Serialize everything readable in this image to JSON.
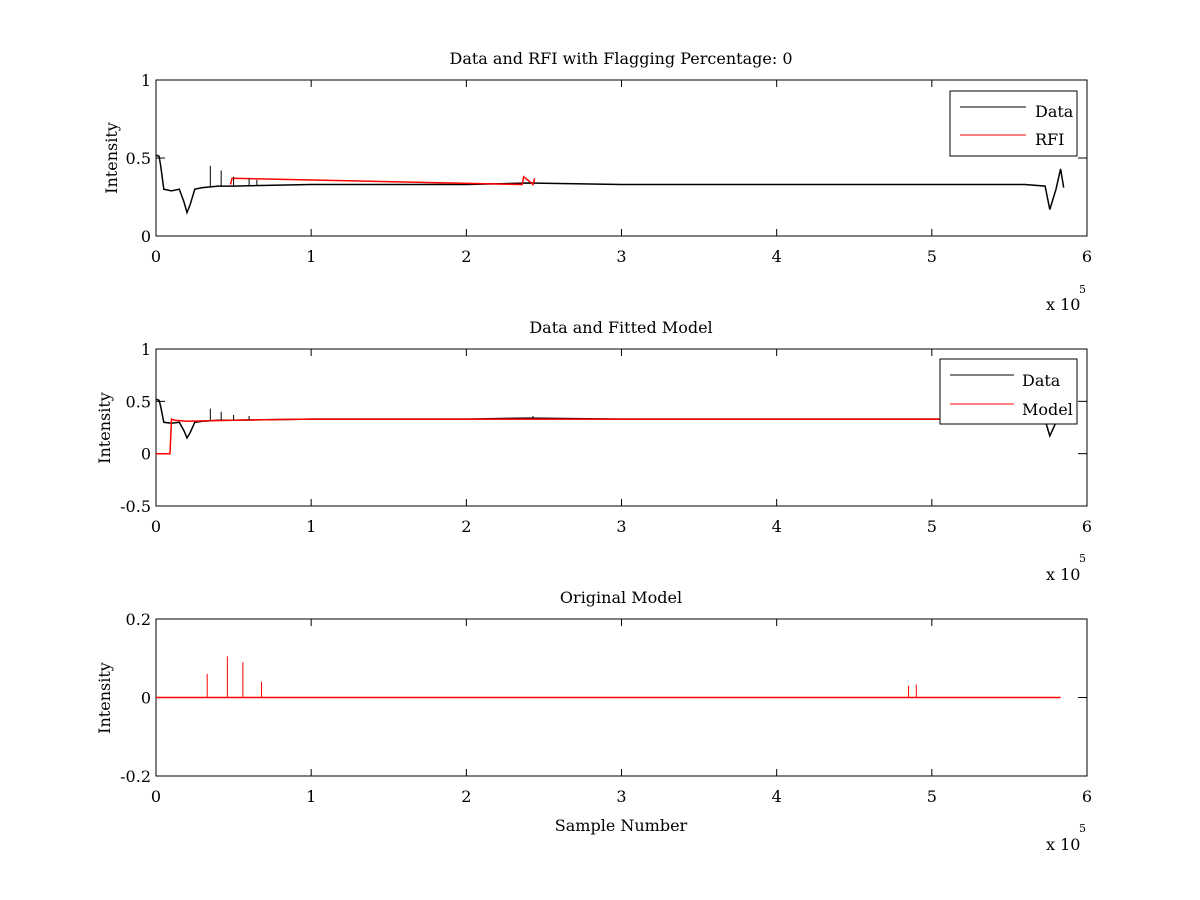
{
  "chart_data": [
    {
      "type": "line",
      "title": "Data and RFI with Flagging Percentage: 0",
      "xlabel": "",
      "ylabel": "Intensity",
      "xlim": [
        0,
        6
      ],
      "ylim": [
        0,
        1
      ],
      "xticks": [
        "0",
        "1",
        "2",
        "3",
        "4",
        "5",
        "6"
      ],
      "yticks": [
        "0",
        "0.5",
        "1"
      ],
      "x_multiplier": "x 10",
      "x_multiplier_exponent": "5",
      "legend": "top-right",
      "series": [
        {
          "name": "Data",
          "color": "#000000",
          "x": [
            0,
            0.02,
            0.03,
            0.05,
            0.1,
            0.15,
            0.18,
            0.2,
            0.22,
            0.25,
            0.3,
            0.4,
            0.5,
            1,
            2,
            2.4,
            3,
            4,
            5,
            5.6,
            5.73,
            5.76,
            5.8,
            5.83,
            5.85
          ],
          "y": [
            0.52,
            0.51,
            0.45,
            0.3,
            0.29,
            0.3,
            0.22,
            0.15,
            0.2,
            0.3,
            0.31,
            0.32,
            0.32,
            0.33,
            0.33,
            0.34,
            0.33,
            0.33,
            0.33,
            0.33,
            0.32,
            0.17,
            0.3,
            0.43,
            0.31
          ]
        },
        {
          "name": "RFI",
          "color": "#ff0000",
          "x": [
            0.48,
            0.49,
            2.36,
            2.37,
            2.43,
            2.44
          ],
          "y": [
            0.33,
            0.37,
            0.33,
            0.38,
            0.33,
            0.37
          ]
        }
      ],
      "spikes": {
        "x": [
          0.35,
          0.42,
          0.5,
          0.6,
          0.65
        ],
        "y": [
          0.45,
          0.42,
          0.38,
          0.37,
          0.36
        ]
      }
    },
    {
      "type": "line",
      "title": "Data and Fitted Model",
      "xlabel": "",
      "ylabel": "Intensity",
      "xlim": [
        0,
        6
      ],
      "ylim": [
        -0.5,
        1
      ],
      "xticks": [
        "0",
        "1",
        "2",
        "3",
        "4",
        "5",
        "6"
      ],
      "yticks": [
        "-0.5",
        "0",
        "0.5",
        "1"
      ],
      "x_multiplier": "x 10",
      "x_multiplier_exponent": "5",
      "legend": "top-right",
      "series": [
        {
          "name": "Data",
          "color": "#000000",
          "x": [
            0,
            0.02,
            0.03,
            0.05,
            0.1,
            0.15,
            0.18,
            0.2,
            0.22,
            0.25,
            0.3,
            0.4,
            0.5,
            1,
            2,
            2.4,
            3,
            4,
            5,
            5.6,
            5.73,
            5.76,
            5.8,
            5.83,
            5.85
          ],
          "y": [
            0.52,
            0.51,
            0.45,
            0.3,
            0.29,
            0.3,
            0.22,
            0.15,
            0.2,
            0.3,
            0.31,
            0.32,
            0.32,
            0.33,
            0.33,
            0.34,
            0.33,
            0.33,
            0.33,
            0.33,
            0.32,
            0.17,
            0.3,
            0.43,
            0.31
          ]
        },
        {
          "name": "Model",
          "color": "#ff0000",
          "x": [
            0,
            0.09,
            0.1,
            0.12,
            0.2,
            0.5,
            1,
            2,
            3,
            4,
            5,
            5.6
          ],
          "y": [
            0,
            0,
            0.33,
            0.32,
            0.31,
            0.32,
            0.33,
            0.33,
            0.33,
            0.33,
            0.33,
            0.33
          ]
        }
      ],
      "spikes": {
        "x": [
          0.35,
          0.42,
          0.5,
          0.6,
          2.43
        ],
        "y": [
          0.43,
          0.4,
          0.37,
          0.36,
          0.36
        ]
      }
    },
    {
      "type": "line",
      "title": "Original Model",
      "xlabel": "Sample Number",
      "ylabel": "Intensity",
      "xlim": [
        0,
        6
      ],
      "ylim": [
        -0.2,
        0.2
      ],
      "xticks": [
        "0",
        "1",
        "2",
        "3",
        "4",
        "5",
        "6"
      ],
      "yticks": [
        "-0.2",
        "0",
        "0.2"
      ],
      "x_multiplier": "x 10",
      "x_multiplier_exponent": "5",
      "legend": "none",
      "series": [
        {
          "name": "",
          "color": "#ff0000",
          "x": [
            0,
            5.83
          ],
          "y": [
            0,
            0
          ]
        }
      ],
      "spikes": {
        "x": [
          0.33,
          0.46,
          0.56,
          0.68,
          4.85,
          4.9
        ],
        "y": [
          0.06,
          0.105,
          0.09,
          0.04,
          0.03,
          0.033
        ]
      }
    }
  ]
}
